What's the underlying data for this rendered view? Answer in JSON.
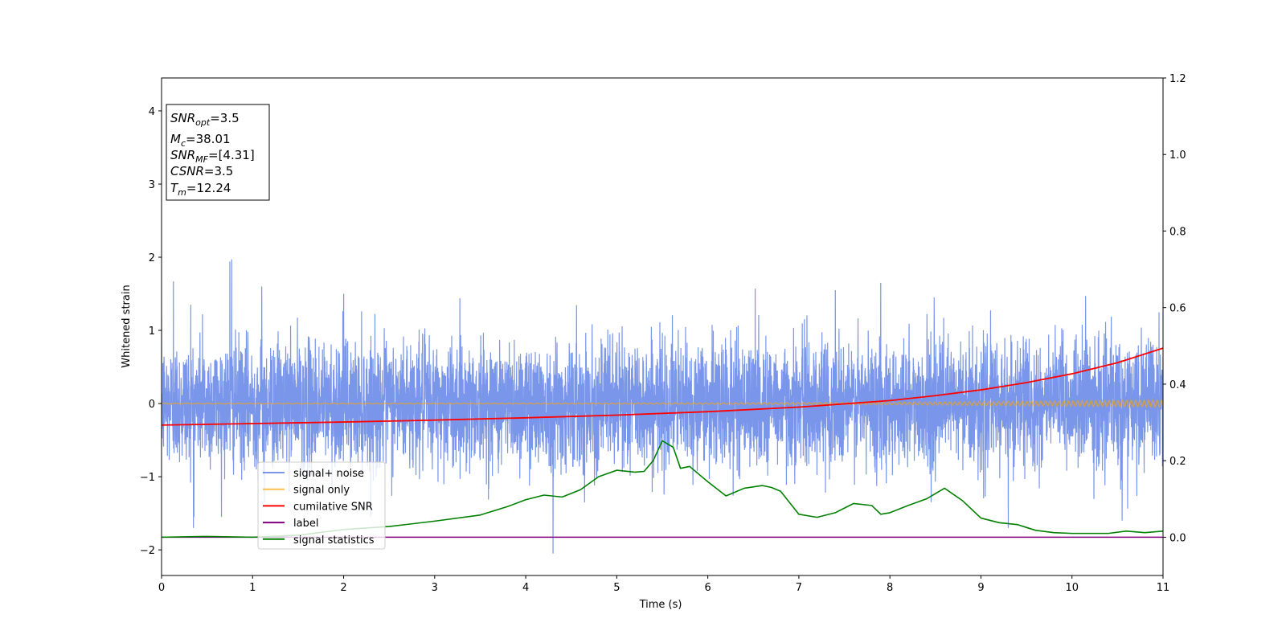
{
  "chart_data": {
    "type": "line",
    "xlabel": "Time (s)",
    "ylabel_left": "Whitened strain",
    "ylabel_right": "",
    "xlim": [
      0,
      11
    ],
    "ylim_left": [
      -2.35,
      4.45
    ],
    "ylim_right": [
      -0.1,
      1.2
    ],
    "x_ticks": [
      "0",
      "1",
      "2",
      "3",
      "4",
      "5",
      "6",
      "7",
      "8",
      "9",
      "10",
      "11"
    ],
    "y_left_ticks": [
      "−2",
      "−1",
      "0",
      "1",
      "2",
      "3",
      "4"
    ],
    "y_right_ticks": [
      "0.0",
      "0.2",
      "0.4",
      "0.6",
      "0.8",
      "1.0",
      "1.2"
    ],
    "grid": false,
    "legend_position": "lower-left",
    "legend": [
      {
        "label": "signal+ noise",
        "color": "#4169e1"
      },
      {
        "label": "signal only",
        "color": "#ffa500"
      },
      {
        "label": "cumilative SNR",
        "color": "#ff0000"
      },
      {
        "label": "label",
        "color": "#800080"
      },
      {
        "label": "signal statistics",
        "color": "#008000"
      }
    ],
    "info_box": [
      {
        "sym": "SNR",
        "sub": "opt",
        "value": "=3.5"
      },
      {
        "sym": "M",
        "sub": "c",
        "value": "=38.01"
      },
      {
        "sym": "SNR",
        "sub": "MF",
        "value": "=[4.31]"
      },
      {
        "sym": "CSNR",
        "sub": "",
        "value": "=3.5"
      },
      {
        "sym": "T",
        "sub": "m",
        "value": "=12.24"
      }
    ],
    "series": [
      {
        "name": "signal+ noise",
        "axis": "left",
        "color": "#4169e1",
        "noise_sigma": 0.42,
        "spikes": [
          {
            "x": 0.13,
            "y": 1.67
          },
          {
            "x": 0.32,
            "y": 1.35
          },
          {
            "x": 0.35,
            "y": -1.7
          },
          {
            "x": 0.45,
            "y": 1.22
          },
          {
            "x": 0.75,
            "y": 1.94
          },
          {
            "x": 0.77,
            "y": 1.97
          },
          {
            "x": 1.1,
            "y": 1.6
          },
          {
            "x": 1.13,
            "y": -1.35
          },
          {
            "x": 2.0,
            "y": 1.5
          },
          {
            "x": 4.3,
            "y": -2.05
          },
          {
            "x": 6.52,
            "y": 1.57
          },
          {
            "x": 7.4,
            "y": 1.55
          },
          {
            "x": 7.9,
            "y": 1.65
          },
          {
            "x": 9.3,
            "y": -1.7
          },
          {
            "x": 10.15,
            "y": 1.47
          },
          {
            "x": 10.55,
            "y": -1.6
          }
        ]
      },
      {
        "name": "signal only",
        "axis": "left",
        "color": "#ffa500",
        "amplitude_start": 0.005,
        "amplitude_end": 0.05
      },
      {
        "name": "cumilative SNR",
        "axis": "right",
        "color": "#ff0000",
        "x": [
          0,
          1,
          2,
          3,
          4,
          5,
          6,
          7,
          8,
          8.5,
          9,
          9.5,
          10,
          10.5,
          11
        ],
        "y": [
          0.293,
          0.297,
          0.301,
          0.306,
          0.312,
          0.319,
          0.328,
          0.34,
          0.357,
          0.37,
          0.385,
          0.404,
          0.427,
          0.456,
          0.494
        ]
      },
      {
        "name": "label",
        "axis": "right",
        "color": "#800080",
        "x": [
          0,
          11
        ],
        "y": [
          0.0,
          0.0
        ]
      },
      {
        "name": "signal statistics",
        "axis": "right",
        "color": "#008000",
        "x": [
          0,
          0.5,
          1,
          1.5,
          2,
          2.5,
          3,
          3.5,
          3.8,
          4.0,
          4.2,
          4.4,
          4.6,
          4.8,
          5.0,
          5.2,
          5.3,
          5.4,
          5.5,
          5.62,
          5.7,
          5.8,
          6.0,
          6.2,
          6.4,
          6.6,
          6.7,
          6.8,
          7.0,
          7.2,
          7.4,
          7.6,
          7.8,
          7.9,
          8.0,
          8.2,
          8.4,
          8.6,
          8.8,
          9.0,
          9.2,
          9.4,
          9.6,
          9.8,
          10.0,
          10.4,
          10.6,
          10.8,
          11.0
        ],
        "y": [
          0.0,
          0.002,
          0.0,
          0.005,
          0.02,
          0.028,
          0.042,
          0.058,
          0.08,
          0.098,
          0.11,
          0.105,
          0.124,
          0.158,
          0.175,
          0.17,
          0.172,
          0.2,
          0.252,
          0.235,
          0.18,
          0.185,
          0.145,
          0.108,
          0.128,
          0.135,
          0.13,
          0.12,
          0.06,
          0.052,
          0.064,
          0.088,
          0.083,
          0.06,
          0.064,
          0.083,
          0.1,
          0.128,
          0.095,
          0.05,
          0.038,
          0.033,
          0.018,
          0.012,
          0.01,
          0.01,
          0.016,
          0.012,
          0.016
        ]
      }
    ]
  }
}
